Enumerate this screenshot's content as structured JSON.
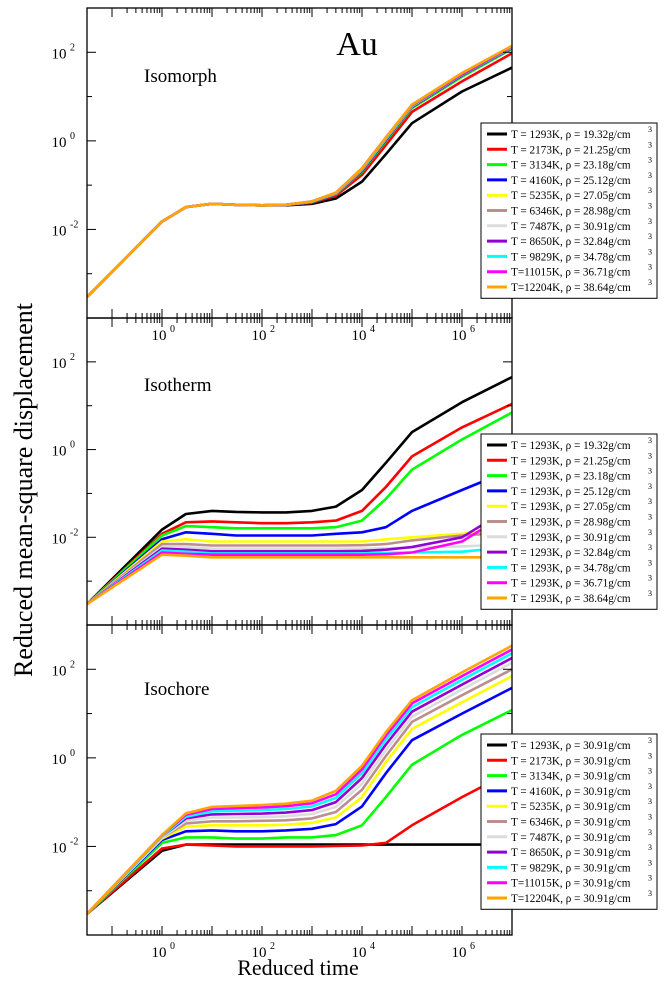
{
  "figure": {
    "label": "Au",
    "ylabel": "Reduced mean-square displacement",
    "xlabel": "Reduced time"
  },
  "chart_data": [
    {
      "type": "line",
      "title": "Isomorph",
      "x_scale": "log",
      "y_scale": "log",
      "xlim": [
        0.0316,
        10000000
      ],
      "ylim": [
        0.0001,
        1000
      ],
      "x_ticks": [
        {
          "v": 1,
          "t": "10",
          "e": "0"
        },
        {
          "v": 100,
          "t": "10",
          "e": "2"
        },
        {
          "v": 10000,
          "t": "10",
          "e": "4"
        },
        {
          "v": 1000000,
          "t": "10",
          "e": "6"
        }
      ],
      "y_ticks": [
        {
          "v": 0.01,
          "t": "10",
          "e": "-2"
        },
        {
          "v": 1,
          "t": "10",
          "e": "0"
        },
        {
          "v": 100,
          "t": "10",
          "e": "2"
        }
      ],
      "legend_position": "right",
      "series": [
        {
          "name": "T = 1293K, ρ = 19.32g/cm",
          "sup": "3",
          "color": "#000000",
          "values": [
            0.0003,
            0.015,
            0.032,
            0.038,
            0.036,
            0.035,
            0.035,
            0.038,
            0.05,
            0.12,
            0.5,
            2.5,
            13,
            45
          ]
        },
        {
          "name": "T = 2173K, ρ = 21.25g/cm",
          "sup": "3",
          "color": "#ff0000",
          "values": [
            0.0003,
            0.015,
            0.032,
            0.038,
            0.036,
            0.035,
            0.036,
            0.04,
            0.058,
            0.17,
            0.8,
            4.5,
            22,
            95
          ]
        },
        {
          "name": "T = 3134K, ρ = 23.18g/cm",
          "sup": "3",
          "color": "#00ff00",
          "values": [
            0.0003,
            0.015,
            0.032,
            0.038,
            0.036,
            0.035,
            0.036,
            0.041,
            0.062,
            0.2,
            1.0,
            5.5,
            28,
            120
          ]
        },
        {
          "name": "T = 4160K, ρ = 25.12g/cm",
          "sup": "3",
          "color": "#0000ff",
          "values": [
            0.0003,
            0.015,
            0.032,
            0.038,
            0.036,
            0.035,
            0.036,
            0.041,
            0.063,
            0.21,
            1.05,
            5.8,
            30,
            125
          ]
        },
        {
          "name": "T = 5235K, ρ = 27.05g/cm",
          "sup": "3",
          "color": "#ffff00",
          "values": [
            0.0003,
            0.015,
            0.032,
            0.038,
            0.036,
            0.035,
            0.036,
            0.042,
            0.064,
            0.22,
            1.1,
            6.0,
            31,
            128
          ]
        },
        {
          "name": "T = 6346K, ρ = 28.98g/cm",
          "sup": "3",
          "color": "#bc8f8f",
          "values": [
            0.0003,
            0.015,
            0.032,
            0.038,
            0.036,
            0.035,
            0.036,
            0.042,
            0.065,
            0.22,
            1.1,
            6.1,
            31,
            130
          ]
        },
        {
          "name": "T = 7487K, ρ = 30.91g/cm",
          "sup": "3",
          "color": "#dcdcdc",
          "values": [
            0.0003,
            0.015,
            0.032,
            0.038,
            0.036,
            0.035,
            0.036,
            0.042,
            0.065,
            0.23,
            1.12,
            6.2,
            32,
            132
          ]
        },
        {
          "name": "T = 8650K, ρ = 32.84g/cm",
          "sup": "3",
          "color": "#9400d3",
          "values": [
            0.0003,
            0.015,
            0.032,
            0.038,
            0.036,
            0.035,
            0.036,
            0.042,
            0.066,
            0.23,
            1.15,
            6.3,
            32,
            134
          ]
        },
        {
          "name": "T = 9829K, ρ = 34.78g/cm",
          "sup": "3",
          "color": "#00ffff",
          "values": [
            0.0003,
            0.015,
            0.032,
            0.038,
            0.036,
            0.035,
            0.036,
            0.042,
            0.066,
            0.23,
            1.15,
            6.4,
            33,
            136
          ]
        },
        {
          "name": "T=11015K, ρ = 36.71g/cm",
          "sup": "3",
          "color": "#ff00ff",
          "values": [
            0.0003,
            0.015,
            0.032,
            0.038,
            0.036,
            0.035,
            0.036,
            0.043,
            0.067,
            0.24,
            1.2,
            6.5,
            33,
            138
          ]
        },
        {
          "name": "T=12204K, ρ = 38.64g/cm",
          "sup": "3",
          "color": "#ffa500",
          "values": [
            0.0003,
            0.015,
            0.032,
            0.038,
            0.036,
            0.035,
            0.036,
            0.043,
            0.068,
            0.24,
            1.2,
            6.6,
            34,
            140
          ]
        }
      ]
    },
    {
      "type": "line",
      "title": "Isotherm",
      "x_scale": "log",
      "y_scale": "log",
      "xlim": [
        0.0316,
        10000000
      ],
      "ylim": [
        0.0001,
        1000
      ],
      "x_ticks": [],
      "y_ticks": [
        {
          "v": 0.01,
          "t": "10",
          "e": "-2"
        },
        {
          "v": 1,
          "t": "10",
          "e": "0"
        },
        {
          "v": 100,
          "t": "10",
          "e": "2"
        }
      ],
      "legend_position": "right",
      "series": [
        {
          "name": "T = 1293K, ρ = 19.32g/cm",
          "sup": "3",
          "color": "#000000",
          "values": [
            0.0003,
            0.015,
            0.034,
            0.04,
            0.038,
            0.037,
            0.037,
            0.04,
            0.05,
            0.12,
            0.5,
            2.5,
            12,
            45
          ]
        },
        {
          "name": "T = 1293K, ρ = 21.25g/cm",
          "sup": "3",
          "color": "#ff0000",
          "values": [
            0.0003,
            0.012,
            0.022,
            0.023,
            0.022,
            0.021,
            0.021,
            0.022,
            0.024,
            0.04,
            0.14,
            0.7,
            3.2,
            11
          ]
        },
        {
          "name": "T = 1293K, ρ = 23.18g/cm",
          "sup": "3",
          "color": "#00ff00",
          "values": [
            0.0003,
            0.011,
            0.018,
            0.017,
            0.016,
            0.016,
            0.016,
            0.016,
            0.017,
            0.024,
            0.075,
            0.35,
            1.7,
            7
          ]
        },
        {
          "name": "T = 1293K, ρ = 25.12g/cm",
          "sup": "3",
          "color": "#0000ff",
          "values": [
            0.0003,
            0.009,
            0.013,
            0.012,
            0.011,
            0.011,
            0.011,
            0.011,
            0.012,
            0.013,
            0.017,
            0.04,
            0.12,
            0.35
          ]
        },
        {
          "name": "T = 1293K, ρ = 27.05g/cm",
          "sup": "3",
          "color": "#ffff00",
          "values": [
            0.0003,
            0.008,
            0.009,
            0.008,
            0.008,
            0.008,
            0.008,
            0.008,
            0.008,
            0.008,
            0.009,
            0.01,
            0.012,
            0.015
          ]
        },
        {
          "name": "T = 1293K, ρ = 28.98g/cm",
          "sup": "3",
          "color": "#bc8f8f",
          "values": [
            0.0003,
            0.007,
            0.007,
            0.0065,
            0.0065,
            0.0065,
            0.0065,
            0.0065,
            0.0065,
            0.0066,
            0.007,
            0.0085,
            0.011,
            0.013
          ]
        },
        {
          "name": "T = 1293K, ρ = 30.91g/cm",
          "sup": "3",
          "color": "#dcdcdc",
          "values": [
            0.0003,
            0.006,
            0.006,
            0.0055,
            0.0055,
            0.0055,
            0.0055,
            0.0055,
            0.0055,
            0.0055,
            0.0056,
            0.0058,
            0.0062,
            0.007
          ]
        },
        {
          "name": "T = 1293K, ρ = 32.84g/cm",
          "sup": "3",
          "color": "#9400d3",
          "values": [
            0.0003,
            0.0055,
            0.0052,
            0.0048,
            0.0048,
            0.0048,
            0.0048,
            0.0048,
            0.0048,
            0.0049,
            0.0052,
            0.006,
            0.01,
            0.05
          ]
        },
        {
          "name": "T = 1293K, ρ = 34.78g/cm",
          "sup": "3",
          "color": "#00ffff",
          "values": [
            0.0003,
            0.005,
            0.0047,
            0.0043,
            0.0043,
            0.0043,
            0.0043,
            0.0043,
            0.0043,
            0.0043,
            0.0044,
            0.0045,
            0.0047,
            0.006
          ]
        },
        {
          "name": "T = 1293K, ρ = 36.71g/cm",
          "sup": "3",
          "color": "#ff00ff",
          "values": [
            0.0003,
            0.0045,
            0.0042,
            0.004,
            0.004,
            0.004,
            0.004,
            0.004,
            0.004,
            0.004,
            0.0041,
            0.0045,
            0.008,
            0.04
          ]
        },
        {
          "name": "T = 1293K, ρ = 38.64g/cm",
          "sup": "3",
          "color": "#ffa500",
          "values": [
            0.0003,
            0.004,
            0.0038,
            0.0035,
            0.0035,
            0.0035,
            0.0035,
            0.0035,
            0.0035,
            0.0035,
            0.0035,
            0.0035,
            0.0035,
            0.0035
          ]
        }
      ]
    },
    {
      "type": "line",
      "title": "Isochore",
      "x_scale": "log",
      "y_scale": "log",
      "xlim": [
        0.0316,
        10000000
      ],
      "ylim": [
        0.0001,
        1000
      ],
      "x_ticks": [
        {
          "v": 1,
          "t": "10",
          "e": "0"
        },
        {
          "v": 100,
          "t": "10",
          "e": "2"
        },
        {
          "v": 10000,
          "t": "10",
          "e": "4"
        },
        {
          "v": 1000000,
          "t": "10",
          "e": "6"
        }
      ],
      "y_ticks": [
        {
          "v": 0.01,
          "t": "10",
          "e": "-2"
        },
        {
          "v": 1,
          "t": "10",
          "e": "0"
        },
        {
          "v": 100,
          "t": "10",
          "e": "2"
        }
      ],
      "legend_position": "right",
      "series": [
        {
          "name": "T = 1293K, ρ = 30.91g/cm",
          "sup": "3",
          "color": "#000000",
          "values": [
            0.0003,
            0.008,
            0.011,
            0.011,
            0.011,
            0.011,
            0.011,
            0.011,
            0.011,
            0.011,
            0.011,
            0.011,
            0.011,
            0.011
          ]
        },
        {
          "name": "T = 2173K, ρ = 30.91g/cm",
          "sup": "3",
          "color": "#ff0000",
          "values": [
            0.0003,
            0.009,
            0.011,
            0.0105,
            0.01,
            0.01,
            0.01,
            0.01,
            0.0102,
            0.0105,
            0.012,
            0.03,
            0.13,
            0.5
          ]
        },
        {
          "name": "T = 3134K, ρ = 30.91g/cm",
          "sup": "3",
          "color": "#00ff00",
          "values": [
            0.0003,
            0.012,
            0.016,
            0.016,
            0.015,
            0.015,
            0.016,
            0.016,
            0.018,
            0.03,
            0.13,
            0.7,
            3.3,
            12
          ]
        },
        {
          "name": "T = 4160K, ρ = 30.91g/cm",
          "sup": "3",
          "color": "#0000ff",
          "values": [
            0.0003,
            0.014,
            0.022,
            0.023,
            0.022,
            0.022,
            0.023,
            0.025,
            0.032,
            0.08,
            0.45,
            2.5,
            10,
            38
          ]
        },
        {
          "name": "T = 5235K, ρ = 30.91g/cm",
          "sup": "3",
          "color": "#ffff00",
          "values": [
            0.0003,
            0.015,
            0.028,
            0.03,
            0.03,
            0.03,
            0.031,
            0.034,
            0.045,
            0.13,
            0.8,
            4.5,
            18,
            70
          ]
        },
        {
          "name": "T = 6346K, ρ = 30.91g/cm",
          "sup": "3",
          "color": "#bc8f8f",
          "values": [
            0.0003,
            0.016,
            0.033,
            0.037,
            0.037,
            0.038,
            0.039,
            0.043,
            0.06,
            0.19,
            1.1,
            6.5,
            26,
            100
          ]
        },
        {
          "name": "T = 7487K, ρ = 30.91g/cm",
          "sup": "3",
          "color": "#dcdcdc",
          "values": [
            0.0003,
            0.016,
            0.038,
            0.045,
            0.045,
            0.046,
            0.048,
            0.054,
            0.078,
            0.26,
            1.5,
            8.5,
            35,
            140
          ]
        },
        {
          "name": "T = 8650K, ρ = 30.91g/cm",
          "sup": "3",
          "color": "#9400d3",
          "values": [
            0.0003,
            0.017,
            0.043,
            0.053,
            0.054,
            0.055,
            0.058,
            0.066,
            0.1,
            0.35,
            2.0,
            11,
            45,
            180
          ]
        },
        {
          "name": "T = 9829K, ρ = 30.91g/cm",
          "sup": "3",
          "color": "#00ffff",
          "values": [
            0.0003,
            0.017,
            0.047,
            0.062,
            0.064,
            0.066,
            0.07,
            0.08,
            0.125,
            0.45,
            2.6,
            14,
            58,
            230
          ]
        },
        {
          "name": "T=11015K, ρ = 30.91g/cm",
          "sup": "3",
          "color": "#ff00ff",
          "values": [
            0.0003,
            0.018,
            0.052,
            0.07,
            0.073,
            0.076,
            0.081,
            0.094,
            0.15,
            0.55,
            3.2,
            17,
            70,
            280
          ]
        },
        {
          "name": "T=12204K, ρ = 30.91g/cm",
          "sup": "3",
          "color": "#ffa500",
          "values": [
            0.0003,
            0.018,
            0.056,
            0.078,
            0.082,
            0.086,
            0.092,
            0.108,
            0.18,
            0.66,
            3.8,
            20,
            85,
            340
          ]
        }
      ]
    }
  ],
  "x_points": [
    0.0316,
    1,
    3,
    10,
    30,
    100,
    300,
    1000,
    3000,
    10000,
    30000,
    100000,
    1000000,
    10000000
  ]
}
